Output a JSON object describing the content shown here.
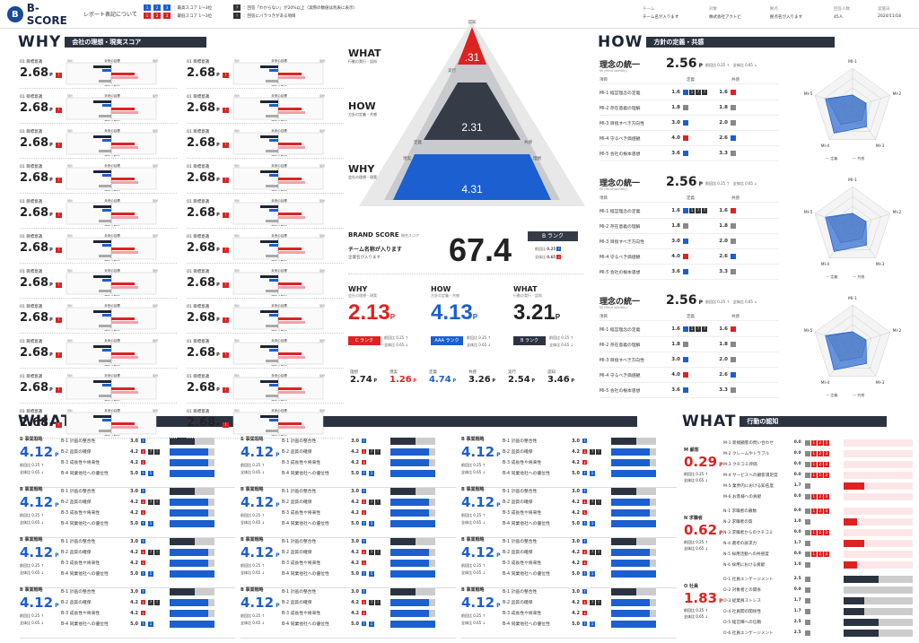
{
  "header": {
    "brand": "B-SCORE",
    "report_label": "レポート表記について",
    "legend": [
      {
        "badges": [
          "1",
          "2",
          "3"
        ],
        "color": "#1b5fd0",
        "text": "：最高スコア 1〜3位"
      },
      {
        "badges": [
          "1",
          "2",
          "3"
        ],
        "color": "#d22",
        "text": "：最低スコア 1〜3位"
      },
      {
        "badges": [
          "?"
        ],
        "color": "#333",
        "text": "：回答「わからない」が20%以上（実際の数値は別表に表示）"
      },
      {
        "badges": [
          "!"
        ],
        "color": "#333",
        "text": "：回答にバラつきがある項目"
      }
    ],
    "meta": [
      {
        "k": "チーム",
        "v": "チーム名が入ります"
      },
      {
        "k": "対象",
        "v": "株式会社アクトビ"
      },
      {
        "k": "拠点",
        "v": "拠点名が入ります"
      },
      {
        "k": "回答人数",
        "v": "45人"
      },
      {
        "k": "実施日",
        "v": "2024/11/18"
      }
    ]
  },
  "why": {
    "title": "WHY",
    "subtitle": "会社の理想・現実スコア",
    "card_label": "01 目標意識",
    "card_value": "2.68",
    "unit": "P",
    "tag": "!",
    "mini_top": "未来の目標",
    "mini_bottom": "現在の数字",
    "mini_left": "現状",
    "mini_right": "理想"
  },
  "pyramid": {
    "what_title": "WHAT",
    "what_sub": "行動の実行・認知",
    "what_val": ".31",
    "how_title": "HOW",
    "how_sub": "方針の定義・共感",
    "how_val": "2.31",
    "why_title": "WHY",
    "why_sub": "会社の理想・現実",
    "why_val": "4.31",
    "labels": [
      "認知",
      "実行",
      "共感",
      "定義",
      "理想",
      "現実"
    ]
  },
  "brand": {
    "title": "BRAND SCORE",
    "title_sub": "総合スコア",
    "team": "チーム名称が入ります",
    "company": "企業名が入ります",
    "score": "67.4",
    "rank": "B ランク",
    "prev_label": "前回比",
    "prev": "0.25",
    "all_label": "全体比",
    "all": "0.65"
  },
  "triple": [
    {
      "t": "WHY",
      "s": "会社の理想・現実",
      "v": "2.13",
      "color": "#d22",
      "rank": "C",
      "rank_color": "#d22"
    },
    {
      "t": "HOW",
      "s": "方針の定義・共感",
      "v": "4.13",
      "color": "#1b5fd0",
      "rank": "AAA",
      "rank_color": "#1b5fd0"
    },
    {
      "t": "WHAT",
      "s": "行動の実行・認知",
      "v": "3.21",
      "color": "#222",
      "rank": "B",
      "rank_color": "#2c3340"
    }
  ],
  "triple_common": {
    "rank_suffix": "ランク",
    "prev_label": "前回比",
    "prev": "0.25",
    "all_label": "全体比",
    "all": "0.65",
    "unit": "P"
  },
  "six": [
    {
      "k": "理想",
      "v": "2.74",
      "c": "#222"
    },
    {
      "k": "現実",
      "v": "1.26",
      "c": "#d22"
    },
    {
      "k": "定義",
      "v": "4.74",
      "c": "#1b5fd0"
    },
    {
      "k": "共感",
      "v": "3.26",
      "c": "#222"
    },
    {
      "k": "実行",
      "v": "2.54",
      "c": "#222"
    },
    {
      "k": "認知",
      "v": "3.46",
      "c": "#222"
    }
  ],
  "how": {
    "title": "HOW",
    "subtitle": "方針の定義・共感",
    "block_title": "理念の統一",
    "block_sub": "MI (Mind Identity)",
    "score": "2.56",
    "unit": "P",
    "prev_label": "前回比",
    "prev": "0.25",
    "all_label": "全体比",
    "all": "0.65",
    "col_item": "項目",
    "col_def": "定義",
    "col_sym": "共感",
    "rows": [
      {
        "n": "MI-1 経営理念の定義",
        "d": "1.6",
        "s": "1.6"
      },
      {
        "n": "MI-2 存在意義の理解",
        "d": "1.8",
        "s": "1.8"
      },
      {
        "n": "MI-3 目指すべき方向性",
        "d": "3.0",
        "s": "2.0"
      },
      {
        "n": "MI-4 守るべき価値観",
        "d": "4.0",
        "s": "2.6"
      },
      {
        "n": "MI-5 会社の根本思想",
        "d": "3.6",
        "s": "3.3"
      }
    ],
    "radar_axes": [
      "MI-1",
      "MI-2",
      "MI-3",
      "MI-4",
      "MI-5"
    ],
    "legend_def": "定義",
    "legend_sym": "共感"
  },
  "what_action": {
    "title": "WHAT",
    "subtitle": "行動の実行スコア",
    "block_head": "B 事業戦略",
    "value": "4.12",
    "unit": "P",
    "prev_label": "前回比",
    "prev": "0.25",
    "all_label": "全体比",
    "all": "0.65",
    "rows": [
      {
        "n": "B-1 計画の整合性",
        "v": "3.0",
        "fill": 0.55,
        "color": "#2c3340"
      },
      {
        "n": "B-2 品質の確保",
        "v": "4.2",
        "fill": 0.85,
        "color": "#1b5fd0"
      },
      {
        "n": "B-3 成長性や将来性",
        "v": "4.2",
        "fill": 0.85,
        "color": "#1b5fd0"
      },
      {
        "n": "B-4 同業他社への優位性",
        "v": "5.0",
        "fill": 1.0,
        "color": "#1b5fd0"
      }
    ]
  },
  "what_cog": {
    "title": "WHAT",
    "subtitle": "行動の認知",
    "prev_label": "前回比",
    "prev": "0.25",
    "all_label": "全体比",
    "all": "0.65",
    "unit": "P",
    "groups": [
      {
        "head": "M 顧客",
        "value": "0.29",
        "color": "#d22",
        "rows": [
          {
            "n": "M-1 新規顧客の問い合わせ",
            "v": "0.0",
            "fill": 0,
            "c": "#d22"
          },
          {
            "n": "M-2 クレームやトラブル",
            "v": "0.0",
            "fill": 0,
            "c": "#d22"
          },
          {
            "n": "M-3 クチコミ評価",
            "v": "0.0",
            "fill": 0,
            "c": "#d22"
          },
          {
            "n": "M-4 サービスへの顧客満足度",
            "v": "0.0",
            "fill": 0,
            "c": "#d22"
          },
          {
            "n": "M-5 業界内における知名度",
            "v": "1.7",
            "fill": 0.3,
            "c": "#d22"
          },
          {
            "n": "M-6 お客様への貢献",
            "v": "0.0",
            "fill": 0,
            "c": "#d22"
          }
        ]
      },
      {
        "head": "N 求職者",
        "value": "0.62",
        "color": "#d22",
        "rows": [
          {
            "n": "N-1 求職者の募数",
            "v": "0.0",
            "fill": 0,
            "c": "#d22"
          },
          {
            "n": "N-2 求職者の質",
            "v": "1.0",
            "fill": 0.2,
            "c": "#d22"
          },
          {
            "n": "N-3 求職者からのクチコミ",
            "v": "0.0",
            "fill": 0,
            "c": "#d22"
          },
          {
            "n": "N-4 選考の訴求力",
            "v": "1.7",
            "fill": 0.3,
            "c": "#d22"
          },
          {
            "n": "N-5 採用活動への共感度",
            "v": "0.0",
            "fill": 0,
            "c": "#d22"
          },
          {
            "n": "N-6 採用における貢献",
            "v": "1.0",
            "fill": 0.2,
            "c": "#d22"
          }
        ]
      },
      {
        "head": "O 社員",
        "value": "1.83",
        "color": "#d22",
        "rows": [
          {
            "n": "O-1 社員エンゲージメント",
            "v": "2.5",
            "fill": 0.5,
            "c": "#2c3340"
          },
          {
            "n": "O-2 対象者との関係",
            "v": "0.0",
            "fill": 0,
            "c": "#2c3340"
          },
          {
            "n": "O-3 従業員ストレス",
            "v": "1.7",
            "fill": 0.3,
            "c": "#2c3340"
          },
          {
            "n": "O-4 社員間の関係性",
            "v": "1.7",
            "fill": 0.3,
            "c": "#2c3340"
          },
          {
            "n": "O-5 経営陣への信頼",
            "v": "2.5",
            "fill": 0.5,
            "c": "#2c3340"
          },
          {
            "n": "O-6 社員エンゲージメント",
            "v": "2.5",
            "fill": 0.5,
            "c": "#2c3340"
          }
        ]
      }
    ]
  }
}
